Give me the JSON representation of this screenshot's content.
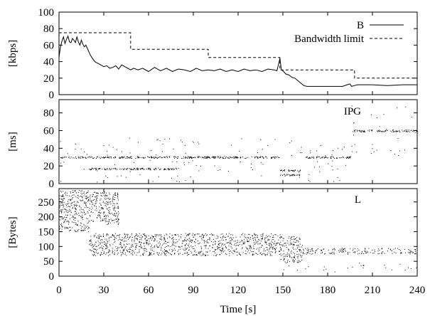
{
  "chart_data": [
    {
      "type": "line",
      "ylabel": "[kbps]",
      "ylim": [
        0,
        100
      ],
      "yticks": [
        0,
        20,
        40,
        60,
        80,
        100
      ],
      "xlim": [
        0,
        240
      ],
      "legend_position": "top-right",
      "series": [
        {
          "name": "B",
          "style": "solid",
          "x": [
            0,
            1,
            2,
            3,
            4,
            5,
            6,
            7,
            8,
            9,
            10,
            11,
            12,
            13,
            14,
            15,
            16,
            17,
            18,
            19,
            20,
            21,
            22,
            24,
            26,
            28,
            30,
            32,
            34,
            36,
            38,
            40,
            42,
            45,
            48,
            50,
            53,
            56,
            60,
            64,
            68,
            72,
            76,
            80,
            84,
            88,
            92,
            96,
            100,
            104,
            108,
            112,
            116,
            120,
            124,
            128,
            132,
            136,
            140,
            144,
            146,
            147,
            148,
            149,
            150,
            152,
            154,
            156,
            158,
            160,
            162,
            164,
            166,
            170,
            180,
            190,
            193,
            195,
            196,
            198,
            200,
            210,
            220,
            230,
            240
          ],
          "values": [
            45,
            58,
            65,
            70,
            62,
            67,
            71,
            64,
            63,
            68,
            66,
            63,
            70,
            64,
            60,
            66,
            61,
            58,
            60,
            56,
            52,
            48,
            45,
            40,
            38,
            36,
            34,
            35,
            32,
            33,
            35,
            31,
            36,
            33,
            30,
            32,
            30,
            32,
            28,
            33,
            29,
            32,
            28,
            31,
            30,
            28,
            32,
            29,
            30,
            29,
            31,
            28,
            30,
            28,
            31,
            29,
            30,
            28,
            31,
            30,
            29,
            36,
            44,
            30,
            29,
            25,
            24,
            21,
            20,
            17,
            14,
            11,
            10,
            10,
            10,
            10,
            12,
            13,
            10,
            11,
            12,
            12,
            11,
            12,
            12
          ]
        },
        {
          "name": "Bandwidth limit",
          "style": "dashed",
          "x": [
            0,
            48,
            48,
            100,
            100,
            148,
            148,
            198,
            198,
            240
          ],
          "values": [
            75,
            75,
            55,
            55,
            45,
            45,
            30,
            30,
            20,
            20
          ]
        }
      ]
    },
    {
      "type": "scatter",
      "label": "IPG",
      "ylabel": "[ms]",
      "ylim": [
        0,
        95
      ],
      "yticks": [
        0,
        20,
        40,
        60,
        80
      ],
      "xlim": [
        0,
        240
      ],
      "bands": [
        {
          "x": [
            0,
            148
          ],
          "y": 30
        },
        {
          "x": [
            20,
            80
          ],
          "y": 17
        },
        {
          "x": [
            148,
            162
          ],
          "y": 15
        },
        {
          "x": [
            148,
            162
          ],
          "y": 10
        },
        {
          "x": [
            165,
            196
          ],
          "y": 30
        },
        {
          "x": [
            196,
            240
          ],
          "y": 60
        }
      ]
    },
    {
      "type": "scatter",
      "label": "L",
      "ylabel": "[Bytes]",
      "xlabel": "Time [s]",
      "ylim": [
        0,
        295
      ],
      "yticks": [
        0,
        50,
        100,
        150,
        200,
        250
      ],
      "xlim": [
        0,
        240
      ],
      "xticks": [
        0,
        30,
        60,
        90,
        120,
        150,
        180,
        210,
        240
      ],
      "clouds": [
        {
          "x": [
            0,
            20
          ],
          "y": [
            150,
            290
          ]
        },
        {
          "x": [
            20,
            40
          ],
          "y": [
            175,
            285
          ]
        },
        {
          "x": [
            20,
            148
          ],
          "y": [
            70,
            145
          ]
        },
        {
          "x": [
            148,
            163
          ],
          "y": [
            45,
            135
          ]
        },
        {
          "x": [
            163,
            240
          ],
          "y": [
            75,
            95
          ]
        }
      ]
    }
  ]
}
